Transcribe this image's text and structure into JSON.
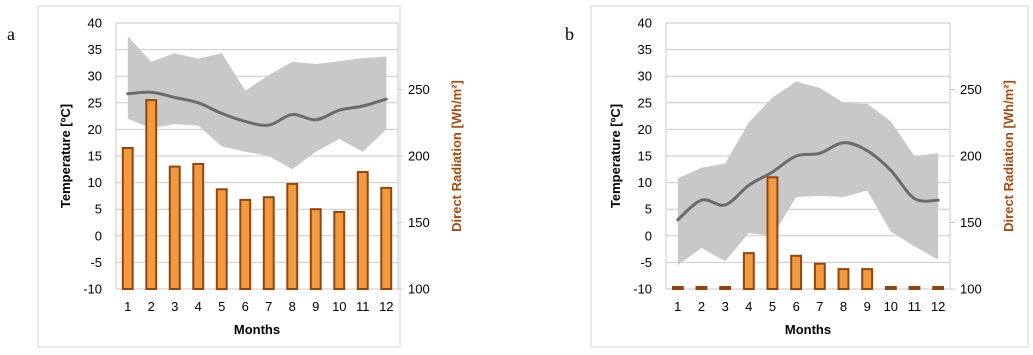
{
  "colors": {
    "band": "#c8c8c9",
    "mean_line": "#6b6b6b",
    "bar_fill": "#f39a3f",
    "bar_edge": "#8f4712",
    "radiation_label": "#a24c15",
    "grid": "#c9c9c9",
    "frame": "#d6d6d6"
  },
  "chart_data": [
    {
      "panel_label": "a",
      "type": "bar+line+area",
      "xlabel": "Months",
      "ylabel": "Temperature [ºC]",
      "y2label": "Direct Radiation [Wh/m²]",
      "categories": [
        "1",
        "2",
        "3",
        "4",
        "5",
        "6",
        "7",
        "8",
        "9",
        "10",
        "11",
        "12"
      ],
      "ylim": [
        -10,
        40
      ],
      "y_ticks": [
        "-10",
        "-5",
        "0",
        "5",
        "10",
        "15",
        "20",
        "25",
        "30",
        "35",
        "40"
      ],
      "y2lim": [
        100,
        300
      ],
      "y2_ticks": [
        "100",
        "150",
        "200",
        "250"
      ],
      "grid": true,
      "radiation": [
        206,
        242,
        192,
        194,
        175,
        167,
        169,
        179,
        160,
        158,
        188,
        176
      ],
      "temp_mean": [
        26.7,
        27.0,
        26.0,
        25.0,
        23.0,
        21.5,
        20.8,
        22.8,
        21.8,
        23.6,
        24.4,
        25.7
      ],
      "temp_max": [
        37.5,
        32.7,
        34.3,
        33.3,
        34.3,
        27.3,
        30.2,
        32.7,
        32.3,
        32.8,
        33.4,
        33.7
      ],
      "temp_min": [
        22.0,
        20.2,
        21.0,
        20.7,
        16.8,
        15.8,
        15.0,
        12.5,
        15.8,
        18.2,
        15.8,
        20.0
      ]
    },
    {
      "panel_label": "b",
      "type": "bar+line+area",
      "xlabel": "Months",
      "ylabel": "Temperature [ºC]",
      "y2label": "Direct Radiation [Wh/m²]",
      "categories": [
        "1",
        "2",
        "3",
        "4",
        "5",
        "6",
        "7",
        "8",
        "9",
        "10",
        "11",
        "12"
      ],
      "ylim": [
        -10,
        40
      ],
      "y_ticks": [
        "-10",
        "-5",
        "0",
        "5",
        "10",
        "15",
        "20",
        "25",
        "30",
        "35",
        "40"
      ],
      "y2lim": [
        100,
        300
      ],
      "y2_ticks": [
        "100",
        "150",
        "200",
        "250"
      ],
      "grid": true,
      "radiation": [
        100,
        100,
        100,
        127,
        184,
        125,
        119,
        115,
        115,
        100,
        100,
        100
      ],
      "temp_mean": [
        3.0,
        6.7,
        5.8,
        9.5,
        12.0,
        15.0,
        15.5,
        17.5,
        16.0,
        12.3,
        7.0,
        6.7
      ],
      "temp_max": [
        10.8,
        12.8,
        13.6,
        21.3,
        26.0,
        29.0,
        27.8,
        25.0,
        24.8,
        21.5,
        15.0,
        15.5
      ],
      "temp_min": [
        -5.5,
        -2.3,
        -4.8,
        0.5,
        0.0,
        7.3,
        7.5,
        7.3,
        8.5,
        0.8,
        -2.0,
        -4.5
      ]
    }
  ]
}
